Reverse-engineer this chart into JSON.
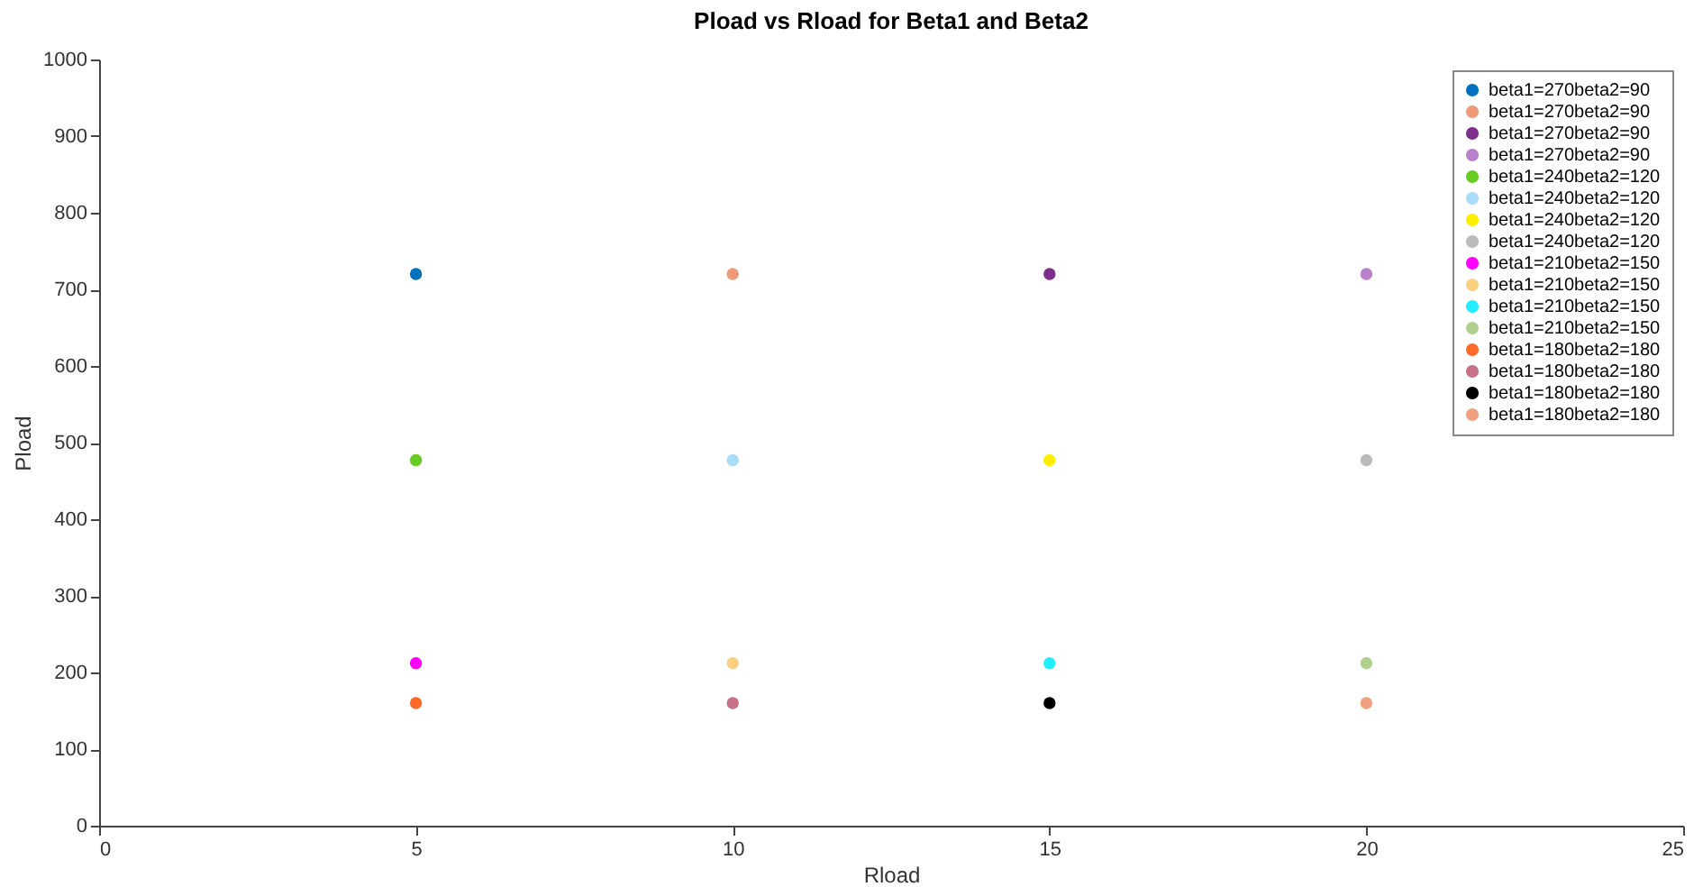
{
  "chart_data": {
    "type": "scatter",
    "title": "Pload vs Rload for Beta1 and Beta2",
    "xlabel": "Rload",
    "ylabel": "Pload",
    "xlim": [
      0,
      25
    ],
    "xticks": [
      0,
      5,
      10,
      15,
      20,
      25
    ],
    "ylim": [
      0,
      1000
    ],
    "yticks": [
      0,
      100,
      200,
      300,
      400,
      500,
      600,
      700,
      800,
      900,
      1000
    ],
    "grid": false,
    "legend": "top right",
    "marker": "circle",
    "series": [
      {
        "name": "beta1=270beta2=90",
        "color": "#0072bd",
        "x": [
          5
        ],
        "values": [
          720
        ]
      },
      {
        "name": "beta1=270beta2=90",
        "color": "#ee9a78",
        "x": [
          10
        ],
        "values": [
          720
        ]
      },
      {
        "name": "beta1=270beta2=90",
        "color": "#7e2f8e",
        "x": [
          15
        ],
        "values": [
          720
        ]
      },
      {
        "name": "beta1=270beta2=90",
        "color": "#b980cc",
        "x": [
          20
        ],
        "values": [
          720
        ]
      },
      {
        "name": "beta1=240beta2=120",
        "color": "#66cc22",
        "x": [
          5
        ],
        "values": [
          477
        ]
      },
      {
        "name": "beta1=240beta2=120",
        "color": "#a8dcf8",
        "x": [
          10
        ],
        "values": [
          477
        ]
      },
      {
        "name": "beta1=240beta2=120",
        "color": "#ffee00",
        "x": [
          15
        ],
        "values": [
          477
        ]
      },
      {
        "name": "beta1=240beta2=120",
        "color": "#bbbbbb",
        "x": [
          20
        ],
        "values": [
          477
        ]
      },
      {
        "name": "beta1=210beta2=150",
        "color": "#ff00ff",
        "x": [
          5
        ],
        "values": [
          212
        ]
      },
      {
        "name": "beta1=210beta2=150",
        "color": "#f8d080",
        "x": [
          10
        ],
        "values": [
          212
        ]
      },
      {
        "name": "beta1=210beta2=150",
        "color": "#22eeff",
        "x": [
          15
        ],
        "values": [
          212
        ]
      },
      {
        "name": "beta1=210beta2=150",
        "color": "#b0d090",
        "x": [
          20
        ],
        "values": [
          212
        ]
      },
      {
        "name": "beta1=180beta2=180",
        "color": "#ff6929",
        "x": [
          5
        ],
        "values": [
          160
        ]
      },
      {
        "name": "beta1=180beta2=180",
        "color": "#c87088",
        "x": [
          10
        ],
        "values": [
          160
        ]
      },
      {
        "name": "beta1=180beta2=180",
        "color": "#000000",
        "x": [
          15
        ],
        "values": [
          160
        ]
      },
      {
        "name": "beta1=180beta2=180",
        "color": "#f0a080",
        "x": [
          20
        ],
        "values": [
          160
        ]
      }
    ]
  }
}
